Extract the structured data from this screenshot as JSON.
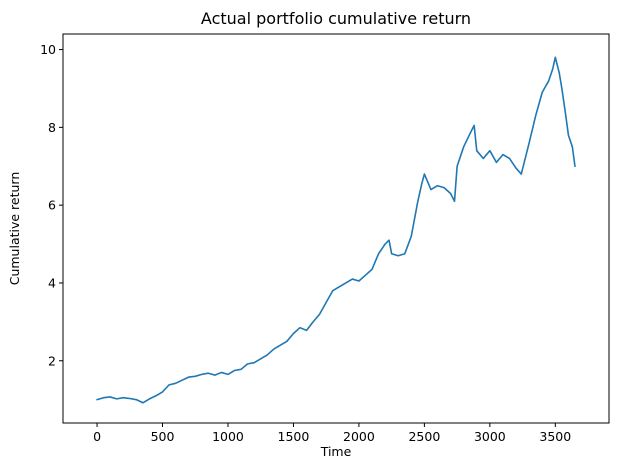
{
  "chart_data": {
    "type": "line",
    "title": "Actual portfolio cumulative return",
    "xlabel": "Time",
    "ylabel": "Cumulative return",
    "xlim": [
      -260,
      3910
    ],
    "ylim": [
      0.4,
      10.4
    ],
    "xticks": [
      0,
      500,
      1000,
      1500,
      2000,
      2500,
      3000,
      3500
    ],
    "yticks": [
      2,
      4,
      6,
      8,
      10
    ],
    "grid": false,
    "colors": {
      "series": "#1f77b4"
    },
    "series": [
      {
        "x": [
          0,
          50,
          100,
          150,
          200,
          250,
          300,
          350,
          400,
          450,
          500,
          550,
          600,
          650,
          700,
          750,
          800,
          850,
          900,
          950,
          1000,
          1050,
          1100,
          1150,
          1200,
          1250,
          1300,
          1350,
          1400,
          1450,
          1500,
          1550,
          1600,
          1650,
          1700,
          1750,
          1800,
          1850,
          1900,
          1950,
          2000,
          2050,
          2100,
          2150,
          2200,
          2230,
          2250,
          2300,
          2350,
          2400,
          2450,
          2480,
          2500,
          2550,
          2600,
          2650,
          2700,
          2730,
          2750,
          2800,
          2850,
          2880,
          2900,
          2950,
          3000,
          3050,
          3100,
          3150,
          3200,
          3240,
          3300,
          3350,
          3400,
          3450,
          3480,
          3500,
          3530,
          3550,
          3580,
          3600,
          3630,
          3650
        ],
        "values": [
          1.0,
          1.05,
          1.07,
          1.02,
          1.05,
          1.03,
          1.0,
          0.92,
          1.02,
          1.1,
          1.2,
          1.38,
          1.42,
          1.5,
          1.58,
          1.6,
          1.65,
          1.68,
          1.63,
          1.7,
          1.65,
          1.75,
          1.78,
          1.92,
          1.95,
          2.05,
          2.15,
          2.3,
          2.4,
          2.5,
          2.7,
          2.85,
          2.78,
          3.0,
          3.2,
          3.5,
          3.8,
          3.9,
          4.0,
          4.1,
          4.05,
          4.2,
          4.35,
          4.75,
          5.0,
          5.1,
          4.75,
          4.7,
          4.75,
          5.2,
          6.1,
          6.55,
          6.8,
          6.4,
          6.5,
          6.45,
          6.3,
          6.1,
          7.0,
          7.5,
          7.85,
          8.05,
          7.4,
          7.2,
          7.4,
          7.1,
          7.3,
          7.2,
          6.95,
          6.8,
          7.6,
          8.3,
          8.9,
          9.2,
          9.5,
          9.8,
          9.4,
          9.0,
          8.3,
          7.8,
          7.5,
          7.0
        ]
      }
    ]
  }
}
